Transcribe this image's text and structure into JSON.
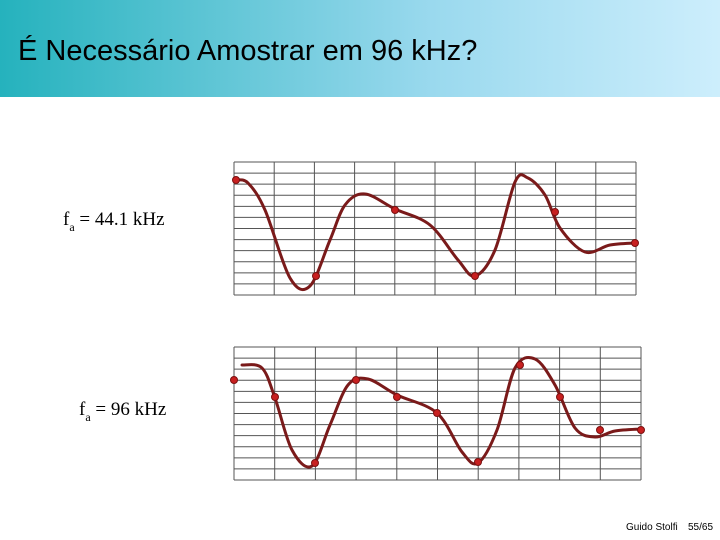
{
  "header": {
    "title": "É Necessário Amostrar em 96 kHz?"
  },
  "panels": [
    {
      "label_main": "f",
      "label_sub": "a",
      "label_rest": " = 44.1 kHz"
    },
    {
      "label_main": "f",
      "label_sub": "a",
      "label_rest": " = 96 kHz"
    }
  ],
  "footer": {
    "author": "Guido Stolfi",
    "page": "55/65"
  }
}
